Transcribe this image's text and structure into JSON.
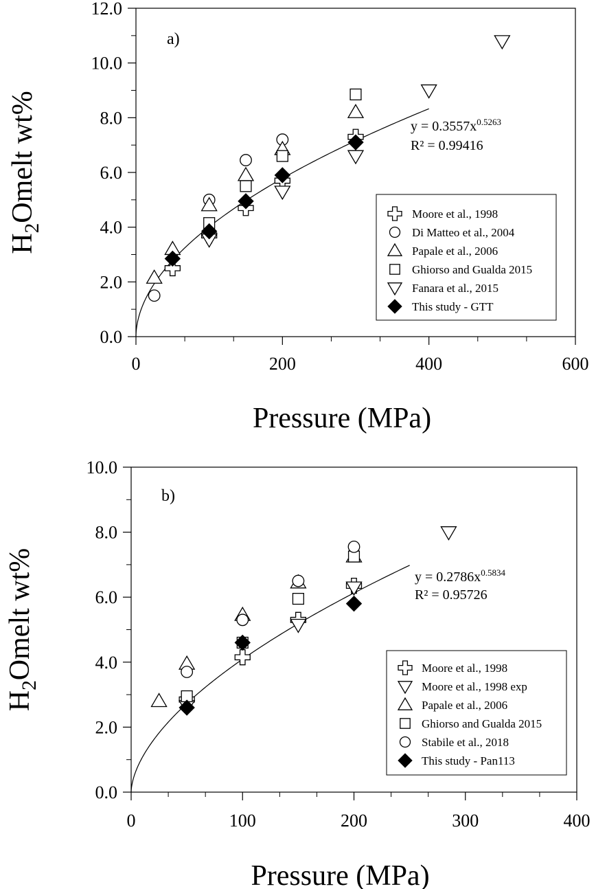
{
  "chart_data": [
    {
      "type": "scatter",
      "panel_label": "a)",
      "title": "",
      "xlabel": "Pressure (MPa)",
      "ylabel": {
        "pre": "H",
        "sub": "2",
        "post": "Omelt wt%"
      },
      "xlim": [
        0,
        600
      ],
      "ylim": [
        0,
        12
      ],
      "x_ticks": [
        0,
        200,
        400,
        600
      ],
      "y_ticks": [
        "0.0",
        "2.0",
        "4.0",
        "6.0",
        "8.0",
        "10.0",
        "12.0"
      ],
      "grid": false,
      "legend_position": "right",
      "fit": {
        "a": 0.3557,
        "b": 0.5263,
        "xmax": 400
      },
      "fit_label": {
        "base": "y = 0.3557x",
        "exp": "0.5263",
        "r2": "R² = 0.99416"
      },
      "series": [
        {
          "name": "Moore et al., 1998",
          "marker": "cross",
          "points": [
            [
              50,
              2.5
            ],
            [
              100,
              3.7
            ],
            [
              150,
              4.7
            ],
            [
              200,
              5.7
            ],
            [
              300,
              7.3
            ]
          ]
        },
        {
          "name": "Di Matteo et al., 2004",
          "marker": "circle",
          "points": [
            [
              25,
              1.5
            ],
            [
              100,
              5.0
            ],
            [
              150,
              6.45
            ],
            [
              200,
              7.2
            ]
          ]
        },
        {
          "name": "Papale et al., 2006",
          "marker": "triangle-up",
          "points": [
            [
              25,
              2.15
            ],
            [
              50,
              3.2
            ],
            [
              100,
              4.8
            ],
            [
              150,
              5.9
            ],
            [
              200,
              6.85
            ],
            [
              300,
              8.2
            ]
          ]
        },
        {
          "name": "Ghiorso and Gualda 2015",
          "marker": "square",
          "points": [
            [
              100,
              4.15
            ],
            [
              150,
              5.5
            ],
            [
              200,
              6.6
            ],
            [
              300,
              8.85
            ]
          ]
        },
        {
          "name": "Fanara et al., 2015",
          "marker": "triangle-down",
          "points": [
            [
              100,
              3.55
            ],
            [
              200,
              5.3
            ],
            [
              300,
              6.6
            ],
            [
              400,
              9.0
            ],
            [
              500,
              10.8
            ]
          ]
        },
        {
          "name": "This study - GTT",
          "marker": "diamond",
          "points": [
            [
              50,
              2.85
            ],
            [
              100,
              3.85
            ],
            [
              150,
              4.95
            ],
            [
              200,
              5.9
            ],
            [
              300,
              7.1
            ]
          ]
        }
      ]
    },
    {
      "type": "scatter",
      "panel_label": "b)",
      "title": "",
      "xlabel": "Pressure (MPa)",
      "ylabel": {
        "pre": "H",
        "sub": "2",
        "post": "Omelt wt%"
      },
      "xlim": [
        0,
        400
      ],
      "ylim": [
        0,
        10
      ],
      "x_ticks": [
        0,
        100,
        200,
        300,
        400
      ],
      "y_ticks": [
        "0.0",
        "2.0",
        "4.0",
        "6.0",
        "8.0",
        "10.0"
      ],
      "grid": false,
      "legend_position": "bottom-right",
      "fit": {
        "a": 0.2786,
        "b": 0.5834,
        "xmax": 250
      },
      "fit_label": {
        "base": "y = 0.2786x",
        "exp": "0.5834",
        "r2": "R² = 0.95726"
      },
      "series": [
        {
          "name": "Moore et al., 1998",
          "marker": "cross",
          "points": [
            [
              50,
              2.85
            ],
            [
              100,
              4.15
            ],
            [
              150,
              5.3
            ],
            [
              200,
              6.35
            ]
          ]
        },
        {
          "name": "Moore et al., 1998 exp",
          "marker": "triangle-down",
          "points": [
            [
              50,
              2.65
            ],
            [
              150,
              5.15
            ],
            [
              200,
              6.3
            ],
            [
              285,
              8.0
            ]
          ]
        },
        {
          "name": "Papale et al., 2006",
          "marker": "triangle-up",
          "points": [
            [
              25,
              2.8
            ],
            [
              50,
              3.95
            ],
            [
              100,
              5.45
            ],
            [
              150,
              6.45
            ],
            [
              200,
              7.25
            ]
          ]
        },
        {
          "name": "Ghiorso and Gualda 2015",
          "marker": "square",
          "points": [
            [
              50,
              2.95
            ],
            [
              100,
              4.6
            ],
            [
              150,
              5.95
            ],
            [
              200,
              7.25
            ]
          ]
        },
        {
          "name": "Stabile et al., 2018",
          "marker": "circle",
          "points": [
            [
              50,
              3.7
            ],
            [
              100,
              5.3
            ],
            [
              150,
              6.5
            ],
            [
              200,
              7.55
            ]
          ]
        },
        {
          "name": "This study - Pan113",
          "marker": "diamond",
          "points": [
            [
              50,
              2.6
            ],
            [
              100,
              4.6
            ],
            [
              200,
              5.8
            ]
          ]
        }
      ]
    }
  ]
}
